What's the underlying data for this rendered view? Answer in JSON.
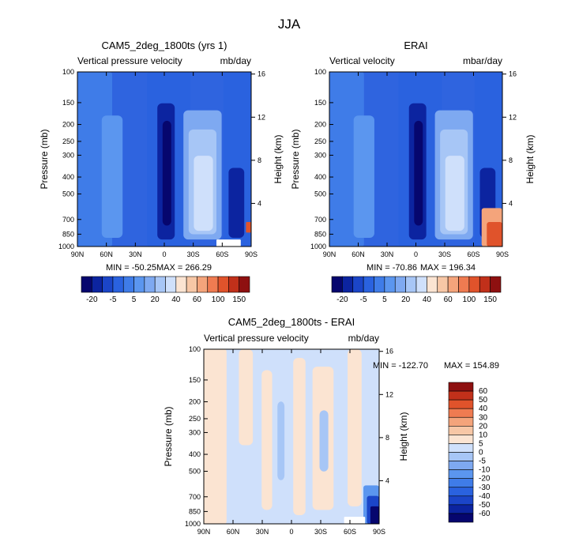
{
  "page": {
    "title": "JJA"
  },
  "palettes": {
    "cam5": [
      "#06066e",
      "#0c24a0",
      "#1b45c8",
      "#2a62df",
      "#3f7ce8",
      "#5b96ef",
      "#7ea9f1",
      "#a7c6f6",
      "#cfe0fb",
      "#fbe4d2",
      "#f7c7a6",
      "#f4a47b",
      "#ef7b51",
      "#e0532b",
      "#c1301a",
      "#8e1010"
    ],
    "diff": [
      "#06066e",
      "#0c24a0",
      "#1b45c8",
      "#2a62df",
      "#3f7ce8",
      "#5b96ef",
      "#7ea9f1",
      "#a7c6f6",
      "#cfe0fb",
      "#fbe4d2",
      "#f7c7a6",
      "#f4a47b",
      "#ef7b51",
      "#e0532b",
      "#c1301a",
      "#8e1010"
    ]
  },
  "chart_data": [
    {
      "id": "cam5",
      "type": "heatmap",
      "title": "CAM5_2deg_1800ts (yrs 1)",
      "subtitle_left": "Vertical pressure velocity",
      "subtitle_right": "mb/day",
      "xlabel": "",
      "ylabel": "Pressure (mb)",
      "ylabel_right": "Height (km)",
      "x_ticks": [
        "90N",
        "60N",
        "30N",
        "0",
        "30S",
        "60S",
        "90S"
      ],
      "y_ticks": [
        "100",
        "150",
        "200",
        "250",
        "300",
        "400",
        "500",
        "700",
        "850",
        "1000"
      ],
      "y_tick_values": [
        100,
        150,
        200,
        250,
        300,
        400,
        500,
        700,
        850,
        1000
      ],
      "height_ticks": [
        "16",
        "12",
        "8",
        "4"
      ],
      "height_tick_values": [
        16,
        12,
        8,
        4
      ],
      "stats": {
        "min_label": "MIN = -50.25",
        "max_label": "MAX = 266.29"
      },
      "colorbar_labels": [
        "-20",
        "-5",
        "5",
        "20",
        "40",
        "60",
        "100",
        "150"
      ],
      "colorbar_orientation": "horizontal"
    },
    {
      "id": "erai",
      "type": "heatmap",
      "title": "ERAI",
      "subtitle_left": "Vertical velocity",
      "subtitle_right": "mbar/day",
      "xlabel": "",
      "ylabel": "Pressure (mb)",
      "ylabel_right": "Height (km)",
      "x_ticks": [
        "90N",
        "60N",
        "30N",
        "0",
        "30S",
        "60S",
        "90S"
      ],
      "y_ticks": [
        "100",
        "150",
        "200",
        "250",
        "300",
        "400",
        "500",
        "700",
        "850",
        "1000"
      ],
      "y_tick_values": [
        100,
        150,
        200,
        250,
        300,
        400,
        500,
        700,
        850,
        1000
      ],
      "height_ticks": [
        "16",
        "12",
        "8",
        "4"
      ],
      "height_tick_values": [
        16,
        12,
        8,
        4
      ],
      "stats": {
        "min_label": "MIN = -70.86",
        "max_label": "MAX = 196.34"
      },
      "colorbar_labels": [
        "-20",
        "-5",
        "5",
        "20",
        "40",
        "60",
        "100",
        "150"
      ],
      "colorbar_orientation": "horizontal"
    },
    {
      "id": "diff",
      "type": "heatmap",
      "title": "CAM5_2deg_1800ts - ERAI",
      "subtitle_left": "Vertical pressure velocity",
      "subtitle_right": "mb/day",
      "xlabel": "",
      "ylabel": "Pressure (mb)",
      "ylabel_right": "Height (km)",
      "x_ticks": [
        "90N",
        "60N",
        "30N",
        "0",
        "30S",
        "60S",
        "90S"
      ],
      "y_ticks": [
        "100",
        "150",
        "200",
        "250",
        "300",
        "400",
        "500",
        "700",
        "850",
        "1000"
      ],
      "y_tick_values": [
        100,
        150,
        200,
        250,
        300,
        400,
        500,
        700,
        850,
        1000
      ],
      "height_ticks": [
        "16",
        "12",
        "8",
        "4"
      ],
      "height_tick_values": [
        16,
        12,
        8,
        4
      ],
      "stats": {
        "min_label": "MIN = -122.70",
        "max_label": "MAX = 154.89"
      },
      "colorbar_labels": [
        "60",
        "50",
        "40",
        "30",
        "20",
        "10",
        "5",
        "0",
        "-5",
        "-10",
        "-20",
        "-30",
        "-40",
        "-50",
        "-60"
      ],
      "colorbar_orientation": "vertical"
    }
  ]
}
